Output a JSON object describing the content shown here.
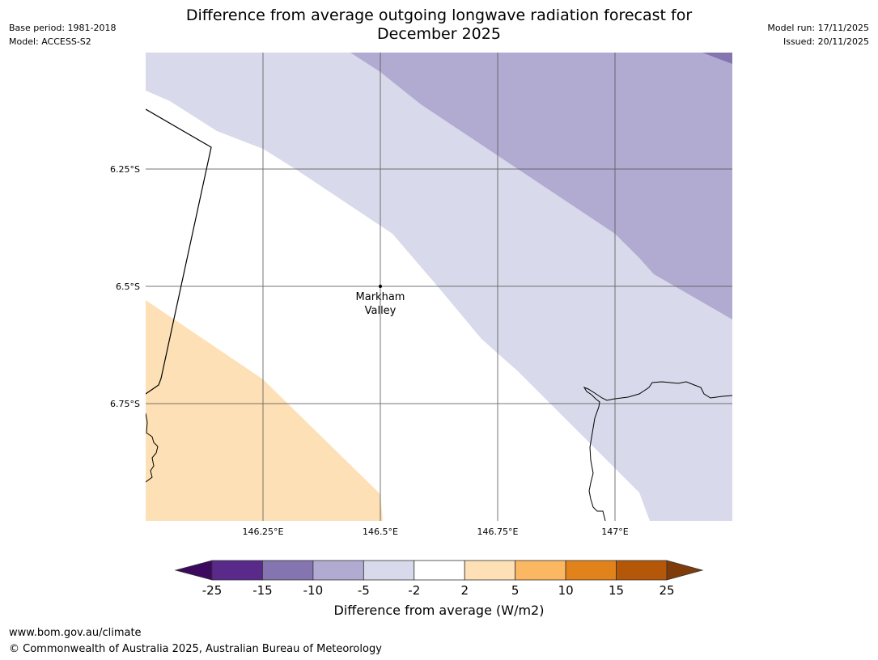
{
  "header": {
    "title_line1": "Difference from average outgoing longwave radiation forecast for",
    "title_line2": "December 2025",
    "base_period": "Base period: 1981-2018",
    "model": "Model: ACCESS-S2",
    "model_run": "Model run: 17/11/2025",
    "issued": "Issued: 20/11/2025"
  },
  "map": {
    "lat_labels": [
      "6.25°S",
      "6.5°S",
      "6.75°S"
    ],
    "lon_labels": [
      "146.25°E",
      "146.5°E",
      "146.75°E",
      "147°E"
    ],
    "place_name_line1": "Markham",
    "place_name_line2": "Valley",
    "colors": {
      "purple_light": "#d8d9ea",
      "purple_mid": "#b1abd1",
      "purple_dark": "#8474af",
      "orange_light": "#fde0b6",
      "grid": "#555555"
    }
  },
  "colorbar": {
    "ticks": [
      "-25",
      "-15",
      "-10",
      "-5",
      "-2",
      "2",
      "5",
      "10",
      "15",
      "25"
    ],
    "colors": [
      "#5a2a8a",
      "#8474af",
      "#b1abd1",
      "#d8d9ea",
      "#ffffff",
      "#fde0b6",
      "#fbb762",
      "#e2821a",
      "#b45708"
    ],
    "under_color": "#3b0a5e",
    "over_color": "#7f3c0a",
    "label": "Difference from average (W/m2)"
  },
  "footer": {
    "url": "www.bom.gov.au/climate",
    "copyright": "© Commonwealth of Australia 2025, Australian Bureau of Meteorology"
  }
}
